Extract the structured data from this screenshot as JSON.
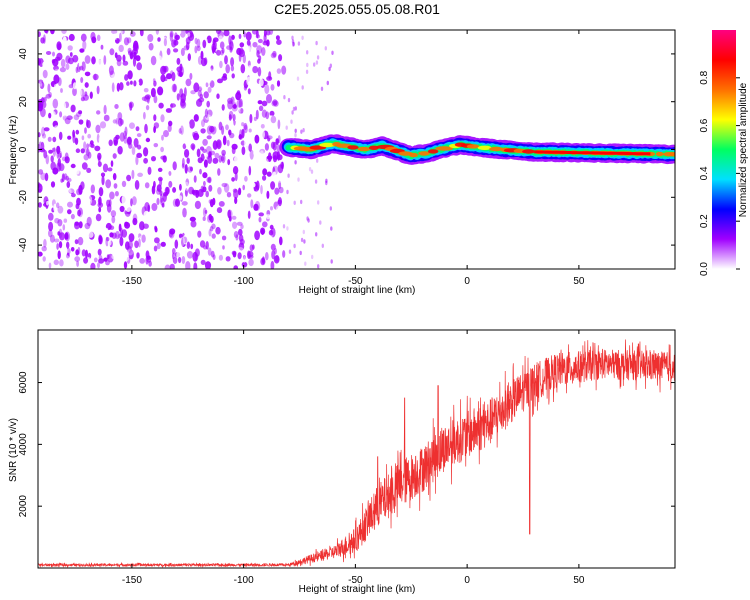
{
  "title": "C2E5.2025.055.05.08.R01",
  "chart_data": [
    {
      "id": "spectrogram",
      "type": "heatmap",
      "xlabel": "Height of straight line (km)",
      "ylabel": "Frequency (Hz)",
      "xlim": [
        -192,
        93
      ],
      "ylim": [
        -50,
        50
      ],
      "xticks": [
        -150,
        -100,
        -50,
        0,
        50
      ],
      "yticks": [
        -40,
        -20,
        0,
        20,
        40
      ],
      "ridge": [
        {
          "x": -80,
          "y": 1.0
        },
        {
          "x": -70,
          "y": 0.0
        },
        {
          "x": -60,
          "y": 2.5
        },
        {
          "x": -52,
          "y": 1.0
        },
        {
          "x": -45,
          "y": 0.0
        },
        {
          "x": -38,
          "y": 1.5
        },
        {
          "x": -30,
          "y": -1.0
        },
        {
          "x": -25,
          "y": -2.5
        },
        {
          "x": -18,
          "y": -1.5
        },
        {
          "x": -10,
          "y": 0.5
        },
        {
          "x": -3,
          "y": 2.0
        },
        {
          "x": 5,
          "y": 1.0
        },
        {
          "x": 15,
          "y": 0.0
        },
        {
          "x": 30,
          "y": -1.0
        },
        {
          "x": 60,
          "y": -1.5
        },
        {
          "x": 93,
          "y": -2.0
        }
      ],
      "noise_region_xmax": -82,
      "colorbar": {
        "label": "Normalized spectral amplitude",
        "range": [
          0,
          1
        ],
        "ticks": [
          0.0,
          0.2,
          0.4,
          0.6,
          0.8
        ]
      },
      "colormap": [
        "#ffffff",
        "#a000ff",
        "#0000ff",
        "#00e0ff",
        "#00ff60",
        "#ffff00",
        "#ff7000",
        "#ff0000",
        "#ff0080"
      ]
    },
    {
      "id": "snr",
      "type": "line",
      "xlabel": "Height of straight line (km)",
      "ylabel": "SNR (10 * v/v)",
      "xlim": [
        -192,
        93
      ],
      "ylim": [
        0,
        7700
      ],
      "xticks": [
        -150,
        -100,
        -50,
        0,
        50
      ],
      "yticks": [
        2000,
        4000,
        6000
      ],
      "color": "#ee3030",
      "envelope": [
        {
          "x": -192,
          "mean": 100,
          "amp": 60
        },
        {
          "x": -80,
          "mean": 100,
          "amp": 60
        },
        {
          "x": -70,
          "mean": 300,
          "amp": 200
        },
        {
          "x": -60,
          "mean": 500,
          "amp": 300
        },
        {
          "x": -50,
          "mean": 900,
          "amp": 600
        },
        {
          "x": -40,
          "mean": 2000,
          "amp": 1000
        },
        {
          "x": -30,
          "mean": 2700,
          "amp": 1100
        },
        {
          "x": -20,
          "mean": 3200,
          "amp": 1100
        },
        {
          "x": -10,
          "mean": 3900,
          "amp": 1100
        },
        {
          "x": 0,
          "mean": 4300,
          "amp": 1100
        },
        {
          "x": 10,
          "mean": 4700,
          "amp": 1100
        },
        {
          "x": 20,
          "mean": 5400,
          "amp": 1000
        },
        {
          "x": 30,
          "mean": 6000,
          "amp": 900
        },
        {
          "x": 40,
          "mean": 6400,
          "amp": 800
        },
        {
          "x": 60,
          "mean": 6600,
          "amp": 700
        },
        {
          "x": 93,
          "mean": 6500,
          "amp": 700
        }
      ],
      "spikes": [
        {
          "x": -13,
          "y": 5900
        },
        {
          "x": -28,
          "y": 5500
        },
        {
          "x": -40,
          "y": 3600
        },
        {
          "x": 28,
          "y": 1100
        }
      ]
    }
  ]
}
